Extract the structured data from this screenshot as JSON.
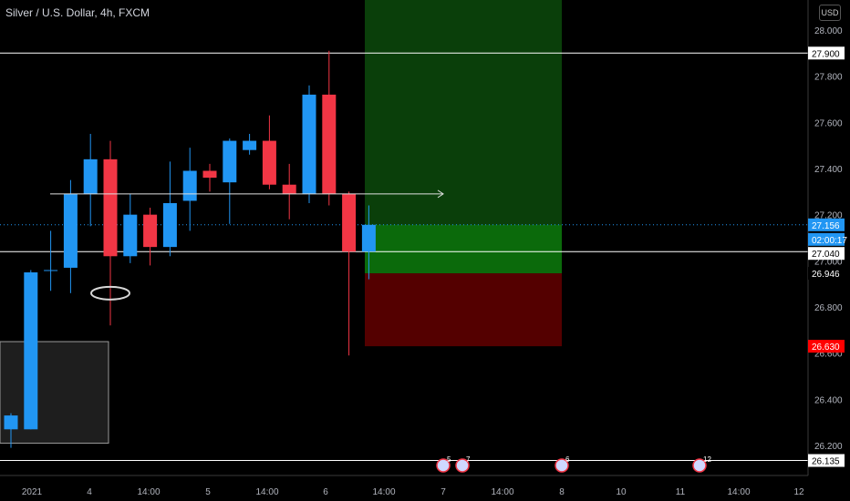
{
  "header": {
    "title": "Silver / U.S. Dollar, 4h, FXCM",
    "currency": "USD"
  },
  "colors": {
    "up": "#2196f3",
    "down": "#f23645",
    "target_zone": "#1e8c1e",
    "stop_zone": "#8c0000",
    "line": "#ffffff",
    "current_price_tag": "#2196f3",
    "stop_tag": "#ff0000"
  },
  "chart_data": {
    "type": "candlestick",
    "ylim": [
      26.07,
      28.13
    ],
    "y_ticks": [
      "26.200",
      "26.400",
      "26.600",
      "26.800",
      "27.000",
      "27.200",
      "27.400",
      "27.600",
      "27.800",
      "28.000"
    ],
    "x_ticks": [
      "2021",
      "4",
      "14:00",
      "5",
      "14:00",
      "6",
      "14:00",
      "7",
      "14:00",
      "8",
      "10",
      "11",
      "14:00",
      "12"
    ],
    "candles": [
      {
        "o": 26.27,
        "h": 26.34,
        "l": 26.19,
        "c": 26.33
      },
      {
        "o": 26.27,
        "h": 26.96,
        "l": 26.27,
        "c": 26.95
      },
      {
        "o": 26.96,
        "h": 27.13,
        "l": 26.87,
        "c": 26.96
      },
      {
        "o": 26.97,
        "h": 27.35,
        "l": 26.86,
        "c": 27.29
      },
      {
        "o": 27.29,
        "h": 27.55,
        "l": 27.15,
        "c": 27.44
      },
      {
        "o": 27.44,
        "h": 27.52,
        "l": 26.72,
        "c": 27.02
      },
      {
        "o": 27.02,
        "h": 27.29,
        "l": 26.99,
        "c": 27.2
      },
      {
        "o": 27.2,
        "h": 27.23,
        "l": 26.98,
        "c": 27.06
      },
      {
        "o": 27.06,
        "h": 27.43,
        "l": 27.02,
        "c": 27.25
      },
      {
        "o": 27.26,
        "h": 27.49,
        "l": 27.13,
        "c": 27.39
      },
      {
        "o": 27.39,
        "h": 27.42,
        "l": 27.3,
        "c": 27.36
      },
      {
        "o": 27.34,
        "h": 27.53,
        "l": 27.16,
        "c": 27.52
      },
      {
        "o": 27.48,
        "h": 27.55,
        "l": 27.46,
        "c": 27.52
      },
      {
        "o": 27.52,
        "h": 27.63,
        "l": 27.31,
        "c": 27.33
      },
      {
        "o": 27.33,
        "h": 27.42,
        "l": 27.18,
        "c": 27.29
      },
      {
        "o": 27.29,
        "h": 27.76,
        "l": 27.25,
        "c": 27.72
      },
      {
        "o": 27.72,
        "h": 27.91,
        "l": 27.24,
        "c": 27.29
      },
      {
        "o": 27.29,
        "h": 27.3,
        "l": 26.59,
        "c": 27.04
      },
      {
        "o": 27.04,
        "h": 27.24,
        "l": 26.92,
        "c": 27.156
      }
    ],
    "horizontal_lines": [
      27.9,
      27.04,
      26.135
    ],
    "current_price": 27.156,
    "price_tags": {
      "top": "27.900",
      "current": "27.156",
      "countdown": "02:00:17",
      "entry": "27.040",
      "extra": "26.946",
      "stop": "26.630",
      "bottom": "26.135"
    },
    "position": {
      "entry": 27.04,
      "target": 28.13,
      "stop": 26.63
    },
    "event_counts": [
      "5",
      "7",
      "6",
      "12"
    ]
  }
}
